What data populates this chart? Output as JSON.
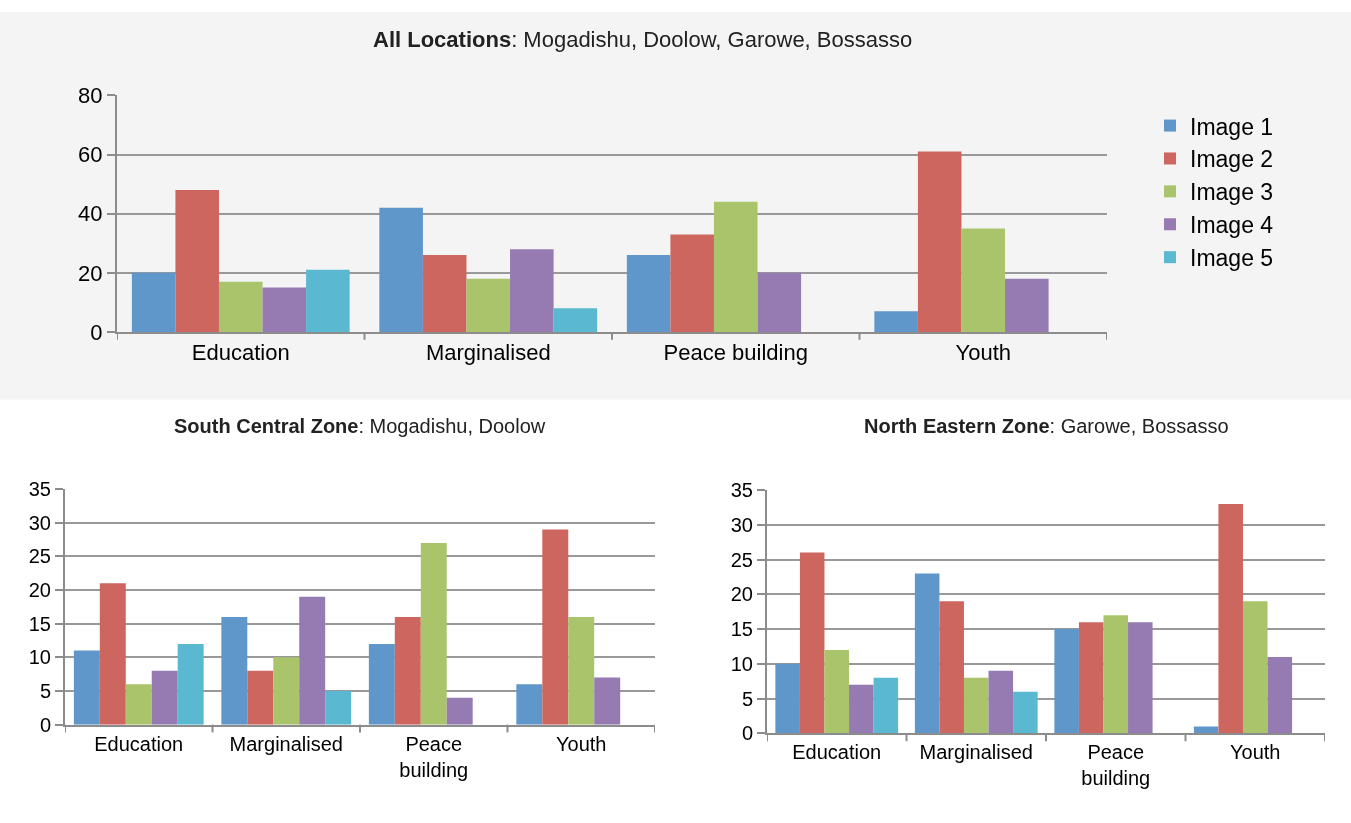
{
  "chart_data": [
    {
      "type": "bar",
      "title": "All Locations: Mogadishu, Doolow, Garowe, Bossasso",
      "categories": [
        "Education",
        "Marginalised",
        "Peace building",
        "Youth"
      ],
      "series": [
        {
          "name": "Image 1",
          "color": "#6097ca",
          "values": [
            20,
            42,
            26,
            7
          ]
        },
        {
          "name": "Image 2",
          "color": "#cd665e",
          "values": [
            48,
            26,
            33,
            61
          ]
        },
        {
          "name": "Image 3",
          "color": "#a9c46b",
          "values": [
            17,
            18,
            44,
            35
          ]
        },
        {
          "name": "Image 4",
          "color": "#957bb2",
          "values": [
            15,
            28,
            20,
            18
          ]
        },
        {
          "name": "Image 5",
          "color": "#5bb8d1",
          "values": [
            21,
            8,
            null,
            null
          ]
        }
      ],
      "ylim": [
        0,
        80
      ],
      "yticks": [
        0,
        20,
        40,
        60,
        80
      ],
      "grid": "y",
      "legend": "right"
    },
    {
      "type": "bar",
      "title": "South Central Zone: Mogadishu, Doolow",
      "categories": [
        "Education",
        "Marginalised",
        "Peace building",
        "Youth"
      ],
      "series": [
        {
          "color": "#6097ca",
          "values": [
            11,
            16,
            12,
            6
          ]
        },
        {
          "color": "#cd665e",
          "values": [
            21,
            8,
            16,
            29
          ]
        },
        {
          "color": "#a9c46b",
          "values": [
            6,
            10,
            27,
            16
          ]
        },
        {
          "color": "#957bb2",
          "values": [
            8,
            19,
            4,
            7
          ]
        },
        {
          "color": "#5bb8d1",
          "values": [
            12,
            5,
            null,
            null
          ]
        }
      ],
      "ylim": [
        0,
        35
      ],
      "yticks": [
        0,
        5,
        10,
        15,
        20,
        25,
        30,
        35
      ],
      "grid": "y"
    },
    {
      "type": "bar",
      "title": "North Eastern Zone: Garowe, Bossasso",
      "categories": [
        "Education",
        "Marginalised",
        "Peace building",
        "Youth"
      ],
      "series": [
        {
          "color": "#6097ca",
          "values": [
            10,
            23,
            15,
            1
          ]
        },
        {
          "color": "#cd665e",
          "values": [
            26,
            19,
            16,
            33
          ]
        },
        {
          "color": "#a9c46b",
          "values": [
            12,
            8,
            17,
            19
          ]
        },
        {
          "color": "#957bb2",
          "values": [
            7,
            9,
            16,
            11
          ]
        },
        {
          "color": "#5bb8d1",
          "values": [
            8,
            6,
            null,
            null
          ]
        }
      ],
      "ylim": [
        0,
        35
      ],
      "yticks": [
        0,
        5,
        10,
        15,
        20,
        25,
        30,
        35
      ],
      "grid": "y"
    }
  ]
}
